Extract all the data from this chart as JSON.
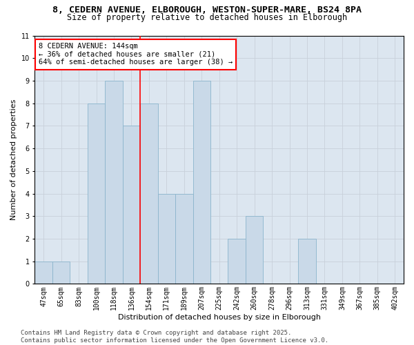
{
  "title1": "8, CEDERN AVENUE, ELBOROUGH, WESTON-SUPER-MARE, BS24 8PA",
  "title2": "Size of property relative to detached houses in Elborough",
  "xlabel": "Distribution of detached houses by size in Elborough",
  "ylabel": "Number of detached properties",
  "categories": [
    "47sqm",
    "65sqm",
    "83sqm",
    "100sqm",
    "118sqm",
    "136sqm",
    "154sqm",
    "171sqm",
    "189sqm",
    "207sqm",
    "225sqm",
    "242sqm",
    "260sqm",
    "278sqm",
    "296sqm",
    "313sqm",
    "331sqm",
    "349sqm",
    "367sqm",
    "385sqm",
    "402sqm"
  ],
  "values": [
    1,
    1,
    0,
    8,
    9,
    7,
    8,
    4,
    4,
    9,
    0,
    2,
    3,
    0,
    0,
    2,
    0,
    0,
    0,
    0,
    0
  ],
  "bar_color": "#c9d9e8",
  "bar_edge_color": "#8ab4cc",
  "redline_x": 5.5,
  "annotation_line1": "8 CEDERN AVENUE: 144sqm",
  "annotation_line2": "← 36% of detached houses are smaller (21)",
  "annotation_line3": "64% of semi-detached houses are larger (38) →",
  "annotation_box_color": "white",
  "annotation_box_edge_color": "red",
  "redline_color": "red",
  "ylim": [
    0,
    11
  ],
  "yticks": [
    0,
    1,
    2,
    3,
    4,
    5,
    6,
    7,
    8,
    9,
    10,
    11
  ],
  "grid_color": "#c8d0da",
  "bg_color": "#dce6f0",
  "footer": "Contains HM Land Registry data © Crown copyright and database right 2025.\nContains public sector information licensed under the Open Government Licence v3.0.",
  "title_fontsize": 9.5,
  "subtitle_fontsize": 8.5,
  "axis_label_fontsize": 8,
  "tick_fontsize": 7,
  "annotation_fontsize": 7.5,
  "footer_fontsize": 6.5,
  "ylabel_fontsize": 8
}
